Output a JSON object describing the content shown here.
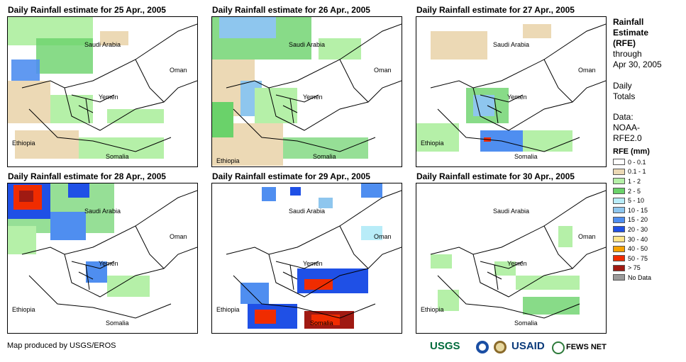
{
  "panels": [
    {
      "title": "Daily Rainfall estimate for 25 Apr., 2005"
    },
    {
      "title": "Daily Rainfall estimate for 26 Apr., 2005"
    },
    {
      "title": "Daily Rainfall estimate for 27 Apr., 2005"
    },
    {
      "title": "Daily Rainfall estimate for 28 Apr., 2005"
    },
    {
      "title": "Daily Rainfall estimate for 29 Apr., 2005"
    },
    {
      "title": "Daily Rainfall estimate for 30 Apr., 2005"
    }
  ],
  "labels": {
    "saudi": "Saudi Arabia",
    "oman": "Oman",
    "yemen": "Yemen",
    "ethiopia": "Ethiopia",
    "somalia": "Somalia"
  },
  "sidebar": {
    "title_lines": [
      "Rainfall",
      "Estimate",
      "(RFE)"
    ],
    "through": "through",
    "date": "Apr 30, 2005",
    "daily": "Daily",
    "totals": "Totals",
    "data_label": "Data:",
    "data_src1": "NOAA-",
    "data_src2": "RFE2.0"
  },
  "legend": {
    "title": "RFE (mm)",
    "items": [
      {
        "label": "0 - 0.1",
        "color": "#ffffff"
      },
      {
        "label": "0.1 - 1",
        "color": "#ecd9b5"
      },
      {
        "label": "1 - 2",
        "color": "#b5f0a8"
      },
      {
        "label": "2 - 5",
        "color": "#6ad26a"
      },
      {
        "label": "5 - 10",
        "color": "#b8ecf8"
      },
      {
        "label": "10 - 15",
        "color": "#8ec6ee"
      },
      {
        "label": "15 - 20",
        "color": "#4f8ef0"
      },
      {
        "label": "20 - 30",
        "color": "#1f50e6"
      },
      {
        "label": "30 - 40",
        "color": "#ffe48a"
      },
      {
        "label": "40 - 50",
        "color": "#f5a200"
      },
      {
        "label": "50 - 75",
        "color": "#f02c00"
      },
      {
        "label": "> 75",
        "color": "#a01a12"
      },
      {
        "label": "No Data",
        "color": "#9a9a9a"
      }
    ]
  },
  "credit": "Map produced by USGS/EROS",
  "logos": {
    "usgs": "USGS",
    "usaid": "USAID",
    "fews": "FEWS NET"
  }
}
